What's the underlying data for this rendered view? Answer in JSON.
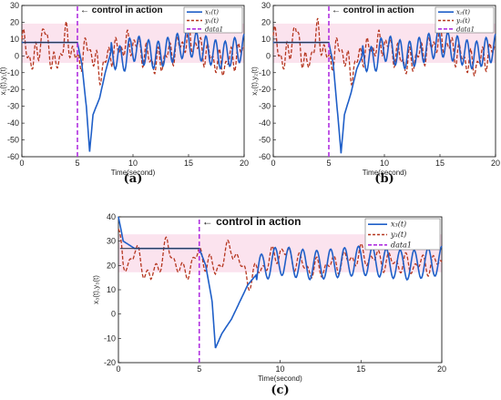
{
  "chart_data": [
    {
      "type": "line",
      "caption": "(a)",
      "xlabel": "Time(second)",
      "ylabel": "x₁(t),y₁(t)",
      "xlim": [
        0,
        20
      ],
      "ylim": [
        -60,
        30
      ],
      "xticks": [
        0,
        5,
        10,
        15,
        20
      ],
      "yticks": [
        -60,
        -50,
        -40,
        -30,
        -20,
        -10,
        0,
        10,
        20,
        30
      ],
      "annotation": "← control in action",
      "control_time": 5,
      "legend_position": "top-right",
      "series": [
        {
          "name": "x₁(t)",
          "color": "#1f5fc8",
          "x": [
            0,
            5,
            5.4,
            5.8,
            6.1,
            6.4,
            7,
            7.5,
            8,
            9,
            10,
            12,
            15,
            18,
            20
          ],
          "y": [
            8,
            8,
            -5,
            -30,
            -57,
            -35,
            -25,
            -10,
            2,
            -3,
            5,
            0,
            8,
            0,
            5
          ]
        },
        {
          "name": "y₁(t)",
          "color": "#b5361f",
          "x": [
            0,
            1,
            2,
            3,
            4,
            5,
            6,
            7,
            8,
            10,
            12,
            15,
            18,
            20
          ],
          "y": [
            10,
            -5,
            15,
            -8,
            12,
            -4,
            6,
            -10,
            2,
            8,
            -5,
            10,
            -6,
            4
          ]
        },
        {
          "name": "data1",
          "color": "#b030e0",
          "x": [
            5,
            5
          ],
          "y": [
            -60,
            30
          ]
        }
      ]
    },
    {
      "type": "line",
      "caption": "(b)",
      "xlabel": "Time(second)",
      "ylabel": "x₂(t),y₂(t)",
      "xlim": [
        0,
        20
      ],
      "ylim": [
        -60,
        30
      ],
      "xticks": [
        0,
        5,
        10,
        15,
        20
      ],
      "yticks": [
        -60,
        -50,
        -40,
        -30,
        -20,
        -10,
        0,
        10,
        20,
        30
      ],
      "annotation": "← control in action",
      "control_time": 5,
      "legend_position": "top-right",
      "series": [
        {
          "name": "x₂(t)",
          "color": "#1f5fc8",
          "x": [
            0,
            5,
            5.4,
            5.8,
            6.1,
            6.4,
            7,
            7.5,
            8,
            9,
            10,
            12,
            15,
            18,
            20
          ],
          "y": [
            8,
            8,
            -5,
            -35,
            -58,
            -35,
            -22,
            -8,
            0,
            -3,
            5,
            0,
            8,
            0,
            5
          ]
        },
        {
          "name": "y₂(t)",
          "color": "#b5361f",
          "x": [
            0,
            1,
            2,
            3,
            4,
            5,
            6,
            7,
            8,
            10,
            12,
            15,
            18,
            20
          ],
          "y": [
            12,
            -5,
            16,
            -8,
            14,
            -4,
            6,
            -10,
            2,
            8,
            -5,
            10,
            -6,
            4
          ]
        },
        {
          "name": "data1",
          "color": "#b030e0",
          "x": [
            5,
            5
          ],
          "y": [
            -60,
            30
          ]
        }
      ]
    },
    {
      "type": "line",
      "caption": "(c)",
      "xlabel": "Time(second)",
      "ylabel": "x₃(t),y₃(t)",
      "xlim": [
        0,
        20
      ],
      "ylim": [
        -20,
        40
      ],
      "xticks": [
        0,
        5,
        10,
        15,
        20
      ],
      "yticks": [
        -20,
        -10,
        0,
        10,
        20,
        30,
        40
      ],
      "annotation": "← control in action",
      "control_time": 5,
      "legend_position": "top-right",
      "series": [
        {
          "name": "x₃(t)",
          "color": "#1f5fc8",
          "x": [
            0,
            0.3,
            1,
            5,
            5.4,
            5.8,
            6,
            6.4,
            7,
            7.5,
            8,
            9,
            10,
            12,
            15,
            18,
            20
          ],
          "y": [
            40,
            30,
            27,
            27,
            20,
            5,
            -14,
            -8,
            -2,
            5,
            12,
            20,
            22,
            20,
            22,
            20,
            22
          ]
        },
        {
          "name": "y₃(t)",
          "color": "#b5361f",
          "x": [
            0,
            0.3,
            1,
            2,
            3,
            4,
            5,
            6,
            7,
            8,
            10,
            12,
            15,
            18,
            20
          ],
          "y": [
            35,
            18,
            26,
            14,
            28,
            16,
            25,
            18,
            28,
            14,
            26,
            18,
            24,
            20,
            21
          ]
        },
        {
          "name": "data1",
          "color": "#b030e0",
          "x": [
            5,
            5
          ],
          "y": [
            -20,
            40
          ]
        }
      ]
    }
  ]
}
